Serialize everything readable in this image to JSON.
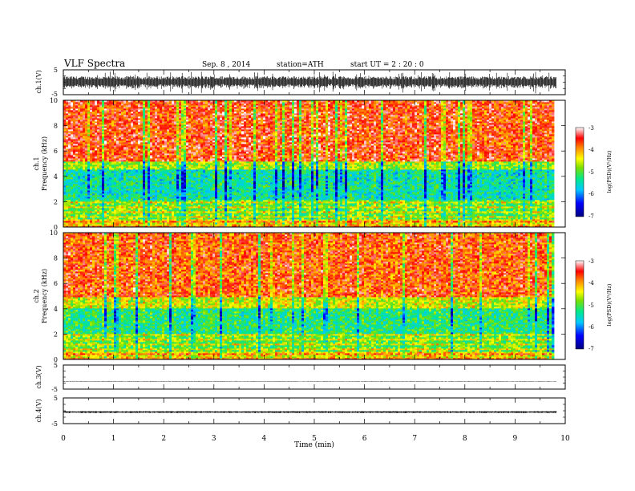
{
  "header": {
    "title": "VLF  Spectra",
    "date": "Sep. 8  , 2014",
    "station": "station=ATH",
    "start_ut": "start  UT  =   2  : 20 : 0"
  },
  "chart_data": [
    {
      "type": "line",
      "ylabel": "ch.1(V)",
      "ylim": [
        -5,
        5
      ],
      "yticks": [
        "5",
        "-5"
      ],
      "signal": {
        "baseline": 0,
        "amplitude": 2.2,
        "color": "#000000"
      }
    },
    {
      "type": "heatmap",
      "ylabel_lines": [
        "ch.1",
        "Frequency  (kHz)"
      ],
      "ylim": [
        0,
        10
      ],
      "yticks": [
        "0",
        "2",
        "4",
        "6",
        "8",
        "10"
      ],
      "data_xlim": [
        0,
        9.8
      ],
      "colorbar": {
        "label": "log(PSD)(V²/Hz)",
        "range": [
          -7,
          -3
        ],
        "ticks": [
          "-3",
          "-4",
          "-5",
          "-6",
          "-7"
        ]
      },
      "bands": [
        {
          "fmin": 0,
          "fmax": 0.6,
          "level": -4.3
        },
        {
          "fmin": 0.6,
          "fmax": 2.2,
          "level": -4.9
        },
        {
          "fmin": 2.2,
          "fmax": 4.6,
          "level": -5.4
        },
        {
          "fmin": 4.6,
          "fmax": 5.2,
          "level": -4.7
        },
        {
          "fmin": 5.2,
          "fmax": 10,
          "level": -3.6
        }
      ]
    },
    {
      "type": "heatmap",
      "ylabel_lines": [
        "ch.2",
        "Frequency  (kHz)"
      ],
      "ylim": [
        0,
        10
      ],
      "yticks": [
        "0",
        "2",
        "4",
        "6",
        "8",
        "10"
      ],
      "data_xlim": [
        0,
        9.8
      ],
      "colorbar": {
        "label": "log(PSD)(V²/Hz)",
        "range": [
          -7,
          -3
        ],
        "ticks": [
          "-3",
          "-4",
          "-5",
          "-6",
          "-7"
        ]
      },
      "bands": [
        {
          "fmin": 0,
          "fmax": 0.6,
          "level": -4.3
        },
        {
          "fmin": 0.6,
          "fmax": 2.0,
          "level": -4.9
        },
        {
          "fmin": 2.0,
          "fmax": 4.0,
          "level": -5.2
        },
        {
          "fmin": 4.0,
          "fmax": 5.0,
          "level": -4.5
        },
        {
          "fmin": 5.0,
          "fmax": 10,
          "level": -3.7
        }
      ]
    },
    {
      "type": "line",
      "ylabel": "ch.3(V)",
      "ylim": [
        -5,
        5
      ],
      "yticks": [
        "5",
        "-5"
      ],
      "signal": {
        "baseline": -1.8,
        "amplitude": 0.15,
        "color": "#444444"
      }
    },
    {
      "type": "line",
      "ylabel": "ch.4(V)",
      "ylim": [
        -5,
        5
      ],
      "yticks": [
        "5",
        "-5"
      ],
      "signal": {
        "baseline": -0.5,
        "amplitude": 0.3,
        "color": "#000000"
      }
    }
  ],
  "xaxis": {
    "label": "Time  (min)",
    "xlim": [
      0,
      10
    ],
    "ticks": [
      "0",
      "1",
      "2",
      "3",
      "4",
      "5",
      "6",
      "7",
      "8",
      "9",
      "10"
    ]
  }
}
